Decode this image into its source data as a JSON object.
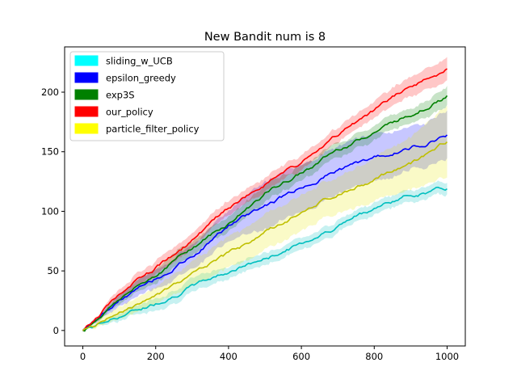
{
  "chart_data": {
    "type": "line",
    "title": "New Bandit num is 8",
    "xlabel": "",
    "ylabel": "",
    "xlim": [
      -50,
      1050
    ],
    "ylim": [
      -13,
      238
    ],
    "x_ticks": [
      0,
      200,
      400,
      600,
      800,
      1000
    ],
    "y_ticks": [
      0,
      50,
      100,
      150,
      200
    ],
    "grid": false,
    "legend_placement": "top-left",
    "series": [
      {
        "name": "sliding_w_UCB",
        "color": "#00bfbf",
        "legend_color": "#00ffff",
        "x": [
          0,
          100,
          200,
          300,
          400,
          500,
          600,
          700,
          800,
          900,
          1000
        ],
        "mean": [
          0,
          12,
          23,
          37,
          50,
          60,
          73,
          88,
          103,
          114,
          119
        ],
        "lower": [
          0,
          9,
          18,
          31,
          45,
          55,
          68,
          83,
          98,
          109,
          114
        ],
        "upper": [
          0,
          15,
          28,
          43,
          55,
          65,
          78,
          93,
          108,
          119,
          124
        ]
      },
      {
        "name": "epsilon_greedy",
        "color": "#0000ff",
        "legend_color": "#0000ff",
        "x": [
          0,
          100,
          200,
          300,
          400,
          500,
          600,
          700,
          800,
          900,
          1000
        ],
        "mean": [
          0,
          25,
          43,
          62,
          88,
          105,
          120,
          135,
          145,
          153,
          165
        ],
        "lower": [
          0,
          20,
          35,
          52,
          75,
          85,
          100,
          115,
          125,
          135,
          145
        ],
        "upper": [
          0,
          30,
          51,
          72,
          101,
          125,
          140,
          155,
          165,
          171,
          185
        ]
      },
      {
        "name": "exp3S",
        "color": "#008000",
        "legend_color": "#008000",
        "x": [
          0,
          100,
          200,
          300,
          400,
          500,
          600,
          700,
          800,
          900,
          1000
        ],
        "mean": [
          0,
          27,
          47,
          70,
          90,
          115,
          132,
          152,
          167,
          182,
          197
        ],
        "lower": [
          0,
          23,
          41,
          64,
          84,
          108,
          126,
          146,
          161,
          176,
          189
        ],
        "upper": [
          0,
          31,
          53,
          76,
          96,
          122,
          138,
          158,
          173,
          188,
          205
        ]
      },
      {
        "name": "our_policy",
        "color": "#ff0000",
        "legend_color": "#ff0000",
        "x": [
          0,
          100,
          200,
          300,
          400,
          500,
          600,
          700,
          800,
          900,
          1000
        ],
        "mean": [
          0,
          30,
          52,
          75,
          102,
          123,
          140,
          163,
          185,
          205,
          220
        ],
        "lower": [
          0,
          26,
          46,
          69,
          96,
          117,
          134,
          157,
          178,
          197,
          210
        ],
        "upper": [
          0,
          34,
          58,
          81,
          108,
          129,
          146,
          169,
          192,
          213,
          230
        ]
      },
      {
        "name": "particle_filter_policy",
        "color": "#bfbf00",
        "legend_color": "#ffff00",
        "x": [
          0,
          100,
          200,
          300,
          400,
          500,
          600,
          700,
          800,
          900,
          1000
        ],
        "mean": [
          0,
          15,
          30,
          47,
          63,
          82,
          100,
          115,
          128,
          140,
          158
        ],
        "lower": [
          0,
          10,
          23,
          37,
          50,
          67,
          85,
          100,
          110,
          118,
          128
        ],
        "upper": [
          0,
          20,
          37,
          57,
          76,
          97,
          115,
          130,
          146,
          162,
          188
        ]
      }
    ]
  }
}
